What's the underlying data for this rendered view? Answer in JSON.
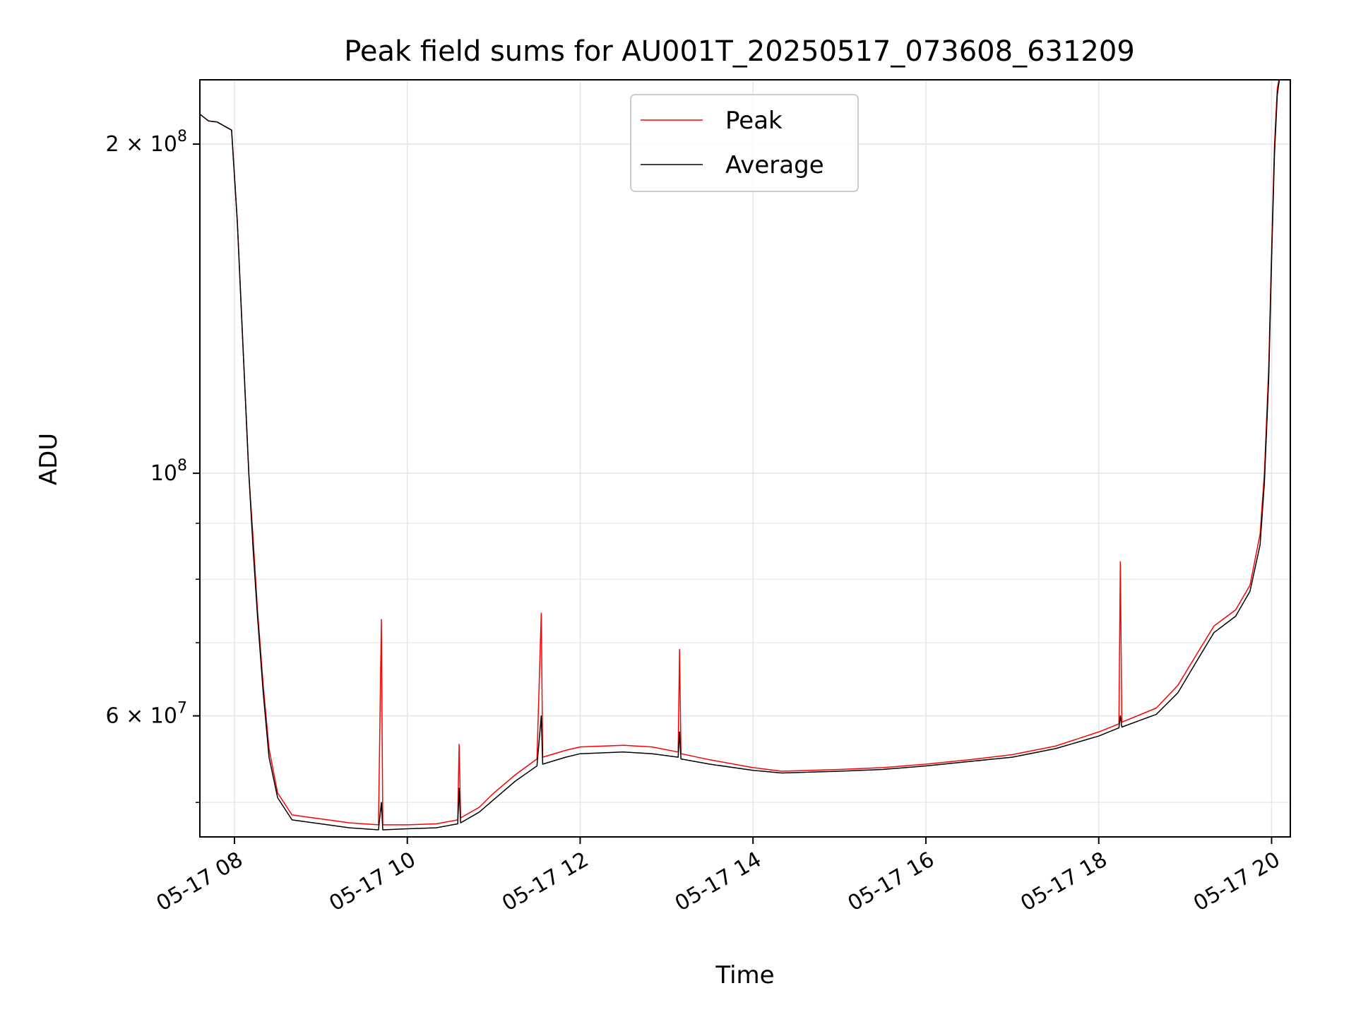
{
  "chart_data": {
    "type": "line",
    "title": "Peak field sums for AU001T_20250517_073608_631209",
    "xlabel": "Time",
    "ylabel": "ADU",
    "y_scale": "log",
    "grid": true,
    "legend_position": "top-center",
    "xlim": [
      "05-17 07:36",
      "05-17 20:13"
    ],
    "ylim": [
      46500000,
      229000000
    ],
    "x_ticks": [
      {
        "time": "05-17 08:00",
        "label": "05-17 08"
      },
      {
        "time": "05-17 10:00",
        "label": "05-17 10"
      },
      {
        "time": "05-17 12:00",
        "label": "05-17 12"
      },
      {
        "time": "05-17 14:00",
        "label": "05-17 14"
      },
      {
        "time": "05-17 16:00",
        "label": "05-17 16"
      },
      {
        "time": "05-17 18:00",
        "label": "05-17 18"
      },
      {
        "time": "05-17 20:00",
        "label": "05-17 20"
      }
    ],
    "y_ticks": [
      {
        "value": 200000000,
        "label": "2 × 10^8",
        "mantissa": "2 × 10",
        "exponent": "8"
      },
      {
        "value": 100000000,
        "label": "10^8",
        "mantissa": "10",
        "exponent": "8"
      },
      {
        "value": 60000000,
        "label": "6 × 10^7",
        "mantissa": "6 × 10",
        "exponent": "7"
      }
    ],
    "y_minor_ticks": [
      50000000,
      70000000,
      80000000,
      90000000
    ],
    "series": [
      {
        "name": "Peak",
        "color": "#ff0000",
        "points": [
          [
            "05-17 07:36",
            213000000
          ],
          [
            "05-17 07:42",
            210000000
          ],
          [
            "05-17 07:48",
            209500000
          ],
          [
            "05-17 07:58",
            206000000
          ],
          [
            "05-17 08:02",
            170000000
          ],
          [
            "05-17 08:06",
            130000000
          ],
          [
            "05-17 08:10",
            100000000
          ],
          [
            "05-17 08:13",
            87000000
          ],
          [
            "05-17 08:16",
            75000000
          ],
          [
            "05-17 08:20",
            64000000
          ],
          [
            "05-17 08:24",
            56000000
          ],
          [
            "05-17 08:30",
            51000000
          ],
          [
            "05-17 08:40",
            48700000
          ],
          [
            "05-17 09:00",
            48300000
          ],
          [
            "05-17 09:20",
            47900000
          ],
          [
            "05-17 09:40",
            47700000
          ],
          [
            "05-17 09:42",
            73500000
          ],
          [
            "05-17 09:43",
            47700000
          ],
          [
            "05-17 10:00",
            47700000
          ],
          [
            "05-17 10:20",
            47800000
          ],
          [
            "05-17 10:35",
            48200000
          ],
          [
            "05-17 10:36",
            56500000
          ],
          [
            "05-17 10:37",
            48400000
          ],
          [
            "05-17 10:50",
            49500000
          ],
          [
            "05-17 11:00",
            51000000
          ],
          [
            "05-17 11:15",
            53000000
          ],
          [
            "05-17 11:30",
            54800000
          ],
          [
            "05-17 11:33",
            74500000
          ],
          [
            "05-17 11:34",
            55000000
          ],
          [
            "05-17 11:50",
            55800000
          ],
          [
            "05-17 12:00",
            56200000
          ],
          [
            "05-17 12:30",
            56400000
          ],
          [
            "05-17 12:50",
            56200000
          ],
          [
            "05-17 13:08",
            55600000
          ],
          [
            "05-17 13:09",
            69000000
          ],
          [
            "05-17 13:10",
            55400000
          ],
          [
            "05-17 13:30",
            54700000
          ],
          [
            "05-17 14:00",
            53800000
          ],
          [
            "05-17 14:20",
            53400000
          ],
          [
            "05-17 15:00",
            53600000
          ],
          [
            "05-17 15:30",
            53800000
          ],
          [
            "05-17 16:00",
            54200000
          ],
          [
            "05-17 16:30",
            54700000
          ],
          [
            "05-17 17:00",
            55300000
          ],
          [
            "05-17 17:30",
            56300000
          ],
          [
            "05-17 18:00",
            58000000
          ],
          [
            "05-17 18:14",
            59000000
          ],
          [
            "05-17 18:15",
            83000000
          ],
          [
            "05-17 18:16",
            59200000
          ],
          [
            "05-17 18:40",
            61000000
          ],
          [
            "05-17 18:55",
            64000000
          ],
          [
            "05-17 19:10",
            69000000
          ],
          [
            "05-17 19:20",
            72500000
          ],
          [
            "05-17 19:35",
            75000000
          ],
          [
            "05-17 19:45",
            79000000
          ],
          [
            "05-17 19:52",
            88000000
          ],
          [
            "05-17 19:55",
            100000000
          ],
          [
            "05-17 19:58",
            125000000
          ],
          [
            "05-17 20:00",
            160000000
          ],
          [
            "05-17 20:02",
            200000000
          ],
          [
            "05-17 20:04",
            225000000
          ],
          [
            "05-17 20:06",
            232000000
          ]
        ]
      },
      {
        "name": "Average",
        "color": "#000000",
        "points": [
          [
            "05-17 07:36",
            213000000
          ],
          [
            "05-17 07:42",
            210000000
          ],
          [
            "05-17 07:48",
            209500000
          ],
          [
            "05-17 07:58",
            206000000
          ],
          [
            "05-17 08:02",
            170000000
          ],
          [
            "05-17 08:06",
            130000000
          ],
          [
            "05-17 08:10",
            100000000
          ],
          [
            "05-17 08:13",
            85000000
          ],
          [
            "05-17 08:16",
            74000000
          ],
          [
            "05-17 08:20",
            63000000
          ],
          [
            "05-17 08:24",
            55000000
          ],
          [
            "05-17 08:30",
            50500000
          ],
          [
            "05-17 08:40",
            48200000
          ],
          [
            "05-17 09:00",
            47800000
          ],
          [
            "05-17 09:20",
            47400000
          ],
          [
            "05-17 09:40",
            47200000
          ],
          [
            "05-17 09:42",
            50000000
          ],
          [
            "05-17 09:43",
            47200000
          ],
          [
            "05-17 10:00",
            47300000
          ],
          [
            "05-17 10:20",
            47400000
          ],
          [
            "05-17 10:35",
            47800000
          ],
          [
            "05-17 10:36",
            51500000
          ],
          [
            "05-17 10:37",
            47900000
          ],
          [
            "05-17 10:50",
            49000000
          ],
          [
            "05-17 11:00",
            50300000
          ],
          [
            "05-17 11:15",
            52300000
          ],
          [
            "05-17 11:30",
            54000000
          ],
          [
            "05-17 11:33",
            60000000
          ],
          [
            "05-17 11:34",
            54200000
          ],
          [
            "05-17 11:50",
            55000000
          ],
          [
            "05-17 12:00",
            55400000
          ],
          [
            "05-17 12:30",
            55600000
          ],
          [
            "05-17 12:50",
            55400000
          ],
          [
            "05-17 13:08",
            55000000
          ],
          [
            "05-17 13:09",
            58000000
          ],
          [
            "05-17 13:10",
            54800000
          ],
          [
            "05-17 13:30",
            54200000
          ],
          [
            "05-17 14:00",
            53500000
          ],
          [
            "05-17 14:20",
            53200000
          ],
          [
            "05-17 15:00",
            53400000
          ],
          [
            "05-17 15:30",
            53600000
          ],
          [
            "05-17 16:00",
            54000000
          ],
          [
            "05-17 16:30",
            54500000
          ],
          [
            "05-17 17:00",
            55000000
          ],
          [
            "05-17 17:30",
            56000000
          ],
          [
            "05-17 18:00",
            57500000
          ],
          [
            "05-17 18:14",
            58500000
          ],
          [
            "05-17 18:15",
            60000000
          ],
          [
            "05-17 18:16",
            58600000
          ],
          [
            "05-17 18:40",
            60200000
          ],
          [
            "05-17 18:55",
            63000000
          ],
          [
            "05-17 19:10",
            68000000
          ],
          [
            "05-17 19:20",
            71500000
          ],
          [
            "05-17 19:35",
            74000000
          ],
          [
            "05-17 19:45",
            78000000
          ],
          [
            "05-17 19:52",
            86000000
          ],
          [
            "05-17 19:55",
            98000000
          ],
          [
            "05-17 19:58",
            122000000
          ],
          [
            "05-17 20:00",
            157000000
          ],
          [
            "05-17 20:02",
            196000000
          ],
          [
            "05-17 20:04",
            222000000
          ],
          [
            "05-17 20:06",
            232000000
          ]
        ]
      }
    ]
  }
}
